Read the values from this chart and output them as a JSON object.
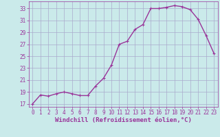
{
  "x": [
    0,
    1,
    2,
    3,
    4,
    5,
    6,
    7,
    8,
    9,
    10,
    11,
    12,
    13,
    14,
    15,
    16,
    17,
    18,
    19,
    20,
    21,
    22,
    23
  ],
  "y": [
    17,
    18.5,
    18.3,
    18.7,
    19.0,
    18.7,
    18.4,
    18.4,
    20.0,
    21.3,
    23.5,
    27.0,
    27.5,
    29.5,
    30.3,
    33.0,
    33.0,
    33.2,
    33.5,
    33.3,
    32.8,
    31.2,
    28.5,
    25.5
  ],
  "line_color": "#993399",
  "marker": "+",
  "marker_size": 3,
  "bg_color": "#caeaea",
  "grid_color": "#aaaacc",
  "xlabel": "Windchill (Refroidissement éolien,°C)",
  "ylabel_ticks": [
    17,
    19,
    21,
    23,
    25,
    27,
    29,
    31,
    33
  ],
  "xlabel_ticks": [
    0,
    1,
    2,
    3,
    4,
    5,
    6,
    7,
    8,
    9,
    10,
    11,
    12,
    13,
    14,
    15,
    16,
    17,
    18,
    19,
    20,
    21,
    22,
    23
  ],
  "ylim": [
    16.5,
    34.2
  ],
  "xlim": [
    -0.5,
    23.5
  ],
  "tick_color": "#993399",
  "tick_fontsize": 5.5,
  "xlabel_fontsize": 6.5,
  "line_width": 1.0
}
